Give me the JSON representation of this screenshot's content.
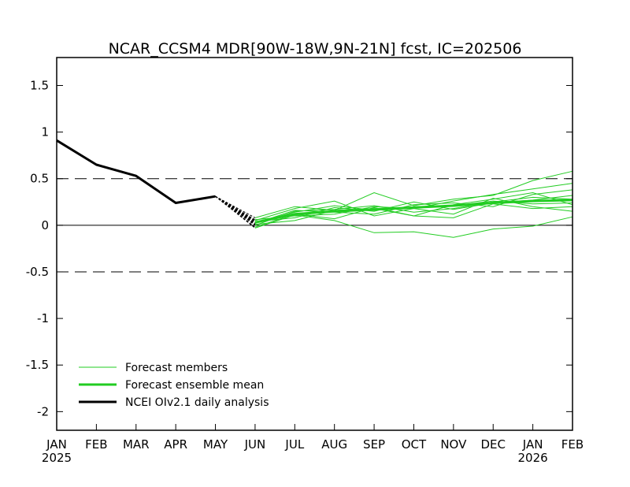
{
  "chart_data": {
    "type": "line",
    "title": "NCAR_CCSM4 MDR[90W-18W,9N-21N] fcst, IC=202506",
    "xlabel": "",
    "ylabel": "",
    "ylim": [
      -2.2,
      1.8
    ],
    "yticks": [
      1.5,
      1,
      0.5,
      0,
      -0.5,
      -1,
      -1.5,
      -2
    ],
    "ytick_labels": [
      "1.5",
      "1",
      "0.5",
      "0",
      "-0.5",
      "-1",
      "-1.5",
      "-2"
    ],
    "x_ticks": [
      {
        "label": "JAN",
        "year": "2025"
      },
      {
        "label": "FEB"
      },
      {
        "label": "MAR"
      },
      {
        "label": "APR"
      },
      {
        "label": "MAY"
      },
      {
        "label": "JUN"
      },
      {
        "label": "JUL"
      },
      {
        "label": "AUG"
      },
      {
        "label": "SEP"
      },
      {
        "label": "OCT"
      },
      {
        "label": "NOV"
      },
      {
        "label": "DEC"
      },
      {
        "label": "JAN",
        "year": "2026"
      },
      {
        "label": "FEB"
      }
    ],
    "reference_lines": [
      {
        "y": 0.5,
        "style": "dashed"
      },
      {
        "y": 0,
        "style": "solid"
      },
      {
        "y": -0.5,
        "style": "dashed"
      }
    ],
    "grid": false,
    "legend_placement": "bottom-left",
    "legend": [
      {
        "label": "Forecast members",
        "color": "#22cc22",
        "width": "thin"
      },
      {
        "label": "Forecast ensemble mean",
        "color": "#22cc22",
        "width": "thick"
      },
      {
        "label": "NCEI OIv2.1 daily analysis",
        "color": "#000000",
        "width": "thick"
      }
    ],
    "colors": {
      "members": "#22cc22",
      "mean": "#22cc22",
      "analysis": "#000000",
      "transition": "#000000"
    },
    "series": [
      {
        "name": "NCEI OIv2.1 daily analysis",
        "kind": "analysis",
        "x": [
          0,
          1,
          2,
          3,
          4
        ],
        "values": [
          0.91,
          0.65,
          0.53,
          0.24,
          0.31
        ]
      },
      {
        "name": "Forecast ensemble mean",
        "kind": "mean",
        "x": [
          5,
          6,
          7,
          8,
          9,
          10,
          11,
          12,
          13
        ],
        "values": [
          0.03,
          0.12,
          0.15,
          0.17,
          0.19,
          0.21,
          0.24,
          0.26,
          0.27
        ]
      }
    ],
    "members": [
      {
        "x": [
          5,
          6,
          7,
          8,
          9,
          10,
          11,
          12,
          13
        ],
        "values": [
          0.08,
          0.2,
          0.16,
          0.35,
          0.21,
          0.28,
          0.32,
          0.48,
          0.58
        ]
      },
      {
        "x": [
          5,
          6,
          7,
          8,
          9,
          10,
          11,
          12,
          13
        ],
        "values": [
          0.05,
          0.18,
          0.26,
          0.1,
          0.18,
          0.26,
          0.33,
          0.39,
          0.45
        ]
      },
      {
        "x": [
          5,
          6,
          7,
          8,
          9,
          10,
          11,
          12,
          13
        ],
        "values": [
          0.0,
          0.15,
          0.17,
          0.21,
          0.14,
          0.18,
          0.25,
          0.3,
          0.28
        ]
      },
      {
        "x": [
          5,
          6,
          7,
          8,
          9,
          10,
          11,
          12,
          13
        ],
        "values": [
          -0.02,
          0.12,
          0.07,
          0.19,
          0.1,
          0.22,
          0.28,
          0.35,
          0.22
        ]
      },
      {
        "x": [
          5,
          6,
          7,
          8,
          9,
          10,
          11,
          12,
          13
        ],
        "values": [
          0.04,
          0.08,
          0.19,
          0.15,
          0.25,
          0.17,
          0.24,
          0.27,
          0.32
        ]
      },
      {
        "x": [
          5,
          6,
          7,
          8,
          9,
          10,
          11,
          12,
          13
        ],
        "values": [
          0.06,
          0.1,
          0.12,
          0.2,
          0.18,
          0.12,
          0.29,
          0.2,
          0.15
        ]
      },
      {
        "x": [
          5,
          6,
          7,
          8,
          9,
          10,
          11,
          12,
          13
        ],
        "values": [
          0.02,
          0.16,
          0.14,
          0.12,
          0.22,
          0.24,
          0.2,
          0.33,
          0.38
        ]
      },
      {
        "x": [
          5,
          6,
          7,
          8,
          9,
          10,
          11,
          12,
          13
        ],
        "values": [
          -0.03,
          0.11,
          0.05,
          -0.08,
          -0.07,
          -0.13,
          -0.04,
          -0.01,
          0.09
        ]
      },
      {
        "x": [
          5,
          6,
          7,
          8,
          9,
          10,
          11,
          12,
          13
        ],
        "values": [
          0.01,
          0.05,
          0.16,
          0.18,
          0.1,
          0.08,
          0.23,
          0.18,
          0.2
        ]
      },
      {
        "x": [
          5,
          6,
          7,
          8,
          9,
          10,
          11,
          12,
          13
        ],
        "values": [
          0.03,
          0.14,
          0.21,
          0.16,
          0.2,
          0.21,
          0.26,
          0.23,
          0.24
        ]
      }
    ],
    "transition": {
      "from_x": 4,
      "from_value": 0.31,
      "to_x": 5,
      "to_values": [
        0.08,
        0.05,
        0.0,
        -0.02,
        0.04,
        0.06,
        0.02,
        -0.03,
        0.01,
        0.03
      ],
      "style": "dashed"
    }
  }
}
